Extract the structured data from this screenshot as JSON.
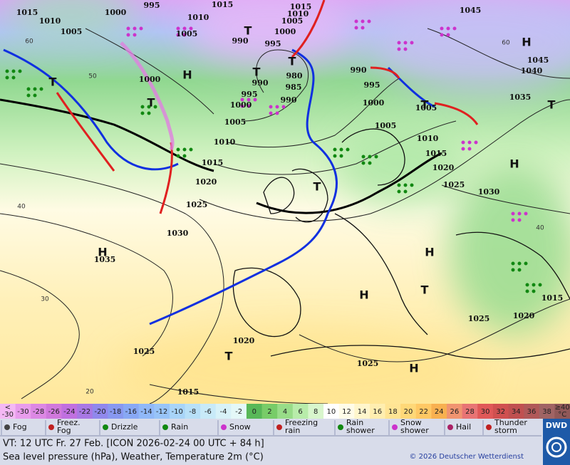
{
  "map": {
    "isobar_labels": [
      1015,
      1010,
      1000,
      995,
      1010,
      1015,
      1015,
      1010,
      1005,
      1000,
      1005,
      1005,
      990,
      995,
      1045,
      1045,
      1040,
      1035,
      1000,
      990,
      980,
      995,
      990,
      985,
      995,
      990,
      1000,
      1000,
      1005,
      1005,
      1005,
      1010,
      1010,
      1015,
      1015,
      1020,
      1020,
      1025,
      1025,
      1030,
      1030,
      1035,
      1020,
      1025,
      1025,
      1015,
      1025,
      1020,
      1015
    ],
    "centers": [
      "H",
      "T",
      "T",
      "T",
      "T",
      "T",
      "T",
      "T",
      "T",
      "H",
      "H",
      "H",
      "H",
      "H",
      "T",
      "H",
      "T"
    ],
    "latitude_labels": [
      60,
      50,
      40,
      30,
      20,
      60,
      40
    ]
  },
  "scale": [
    {
      "lines": [
        "<",
        "-30"
      ],
      "color": "#f4b8f4"
    },
    {
      "lines": [
        -30
      ],
      "color": "#e89cec"
    },
    {
      "lines": [
        -28
      ],
      "color": "#dc88e4"
    },
    {
      "lines": [
        -26
      ],
      "color": "#d078dc"
    },
    {
      "lines": [
        -24
      ],
      "color": "#c070e0"
    },
    {
      "lines": [
        -22
      ],
      "color": "#a878e4"
    },
    {
      "lines": [
        -20
      ],
      "color": "#9088ec"
    },
    {
      "lines": [
        -18
      ],
      "color": "#8898f0"
    },
    {
      "lines": [
        -16
      ],
      "color": "#88a8f4"
    },
    {
      "lines": [
        -14
      ],
      "color": "#90b8f8"
    },
    {
      "lines": [
        -12
      ],
      "color": "#98c4f8"
    },
    {
      "lines": [
        -10
      ],
      "color": "#a8d4f8"
    },
    {
      "lines": [
        -8
      ],
      "color": "#b8e0f8"
    },
    {
      "lines": [
        -6
      ],
      "color": "#c8eaf8"
    },
    {
      "lines": [
        -4
      ],
      "color": "#d8f2f8"
    },
    {
      "lines": [
        -2
      ],
      "color": "#e4f8f8"
    },
    {
      "lines": [
        0
      ],
      "color": "#58b858"
    },
    {
      "lines": [
        2
      ],
      "color": "#78cc68"
    },
    {
      "lines": [
        4
      ],
      "color": "#98dc88"
    },
    {
      "lines": [
        6
      ],
      "color": "#b8ecaa"
    },
    {
      "lines": [
        8
      ],
      "color": "#d8f6cc"
    },
    {
      "lines": [
        10
      ],
      "color": "#ffffff"
    },
    {
      "lines": [
        12
      ],
      "color": "#fffce8"
    },
    {
      "lines": [
        14
      ],
      "color": "#fff6cc"
    },
    {
      "lines": [
        16
      ],
      "color": "#ffeeb0"
    },
    {
      "lines": [
        18
      ],
      "color": "#ffe494"
    },
    {
      "lines": [
        20
      ],
      "color": "#ffd878"
    },
    {
      "lines": [
        22
      ],
      "color": "#ffc864"
    },
    {
      "lines": [
        24
      ],
      "color": "#f8b050"
    },
    {
      "lines": [
        26
      ],
      "color": "#f09470"
    },
    {
      "lines": [
        28
      ],
      "color": "#e87474"
    },
    {
      "lines": [
        30
      ],
      "color": "#e05858"
    },
    {
      "lines": [
        32
      ],
      "color": "#d05050"
    },
    {
      "lines": [
        34
      ],
      "color": "#c05050"
    },
    {
      "lines": [
        36
      ],
      "color": "#b05858"
    },
    {
      "lines": [
        38
      ],
      "color": "#a06464"
    },
    {
      "lines": [
        "≥40",
        "°C"
      ],
      "color": "#905858"
    }
  ],
  "legend": [
    [
      "Fog"
    ],
    [
      "Freez.",
      "Fog"
    ],
    [
      "Drizzle"
    ],
    [
      "Rain"
    ],
    [
      "Snow"
    ],
    [
      "Freezing",
      "rain"
    ],
    [
      "Rain",
      "shower"
    ],
    [
      "Snow",
      "shower"
    ],
    [
      "Hail"
    ],
    [
      "Thunder",
      "storm"
    ]
  ],
  "footer": {
    "valid_time": "VT: 12 UTC Fr.  27 Feb. [ICON 2026-02-24  00 UTC + 84 h]",
    "description": "Sea level pressure (hPa), Weather, Temperature 2m (°C)",
    "copyright": "© 2026 Deutscher Wetterdienst",
    "logo": "DWD"
  }
}
